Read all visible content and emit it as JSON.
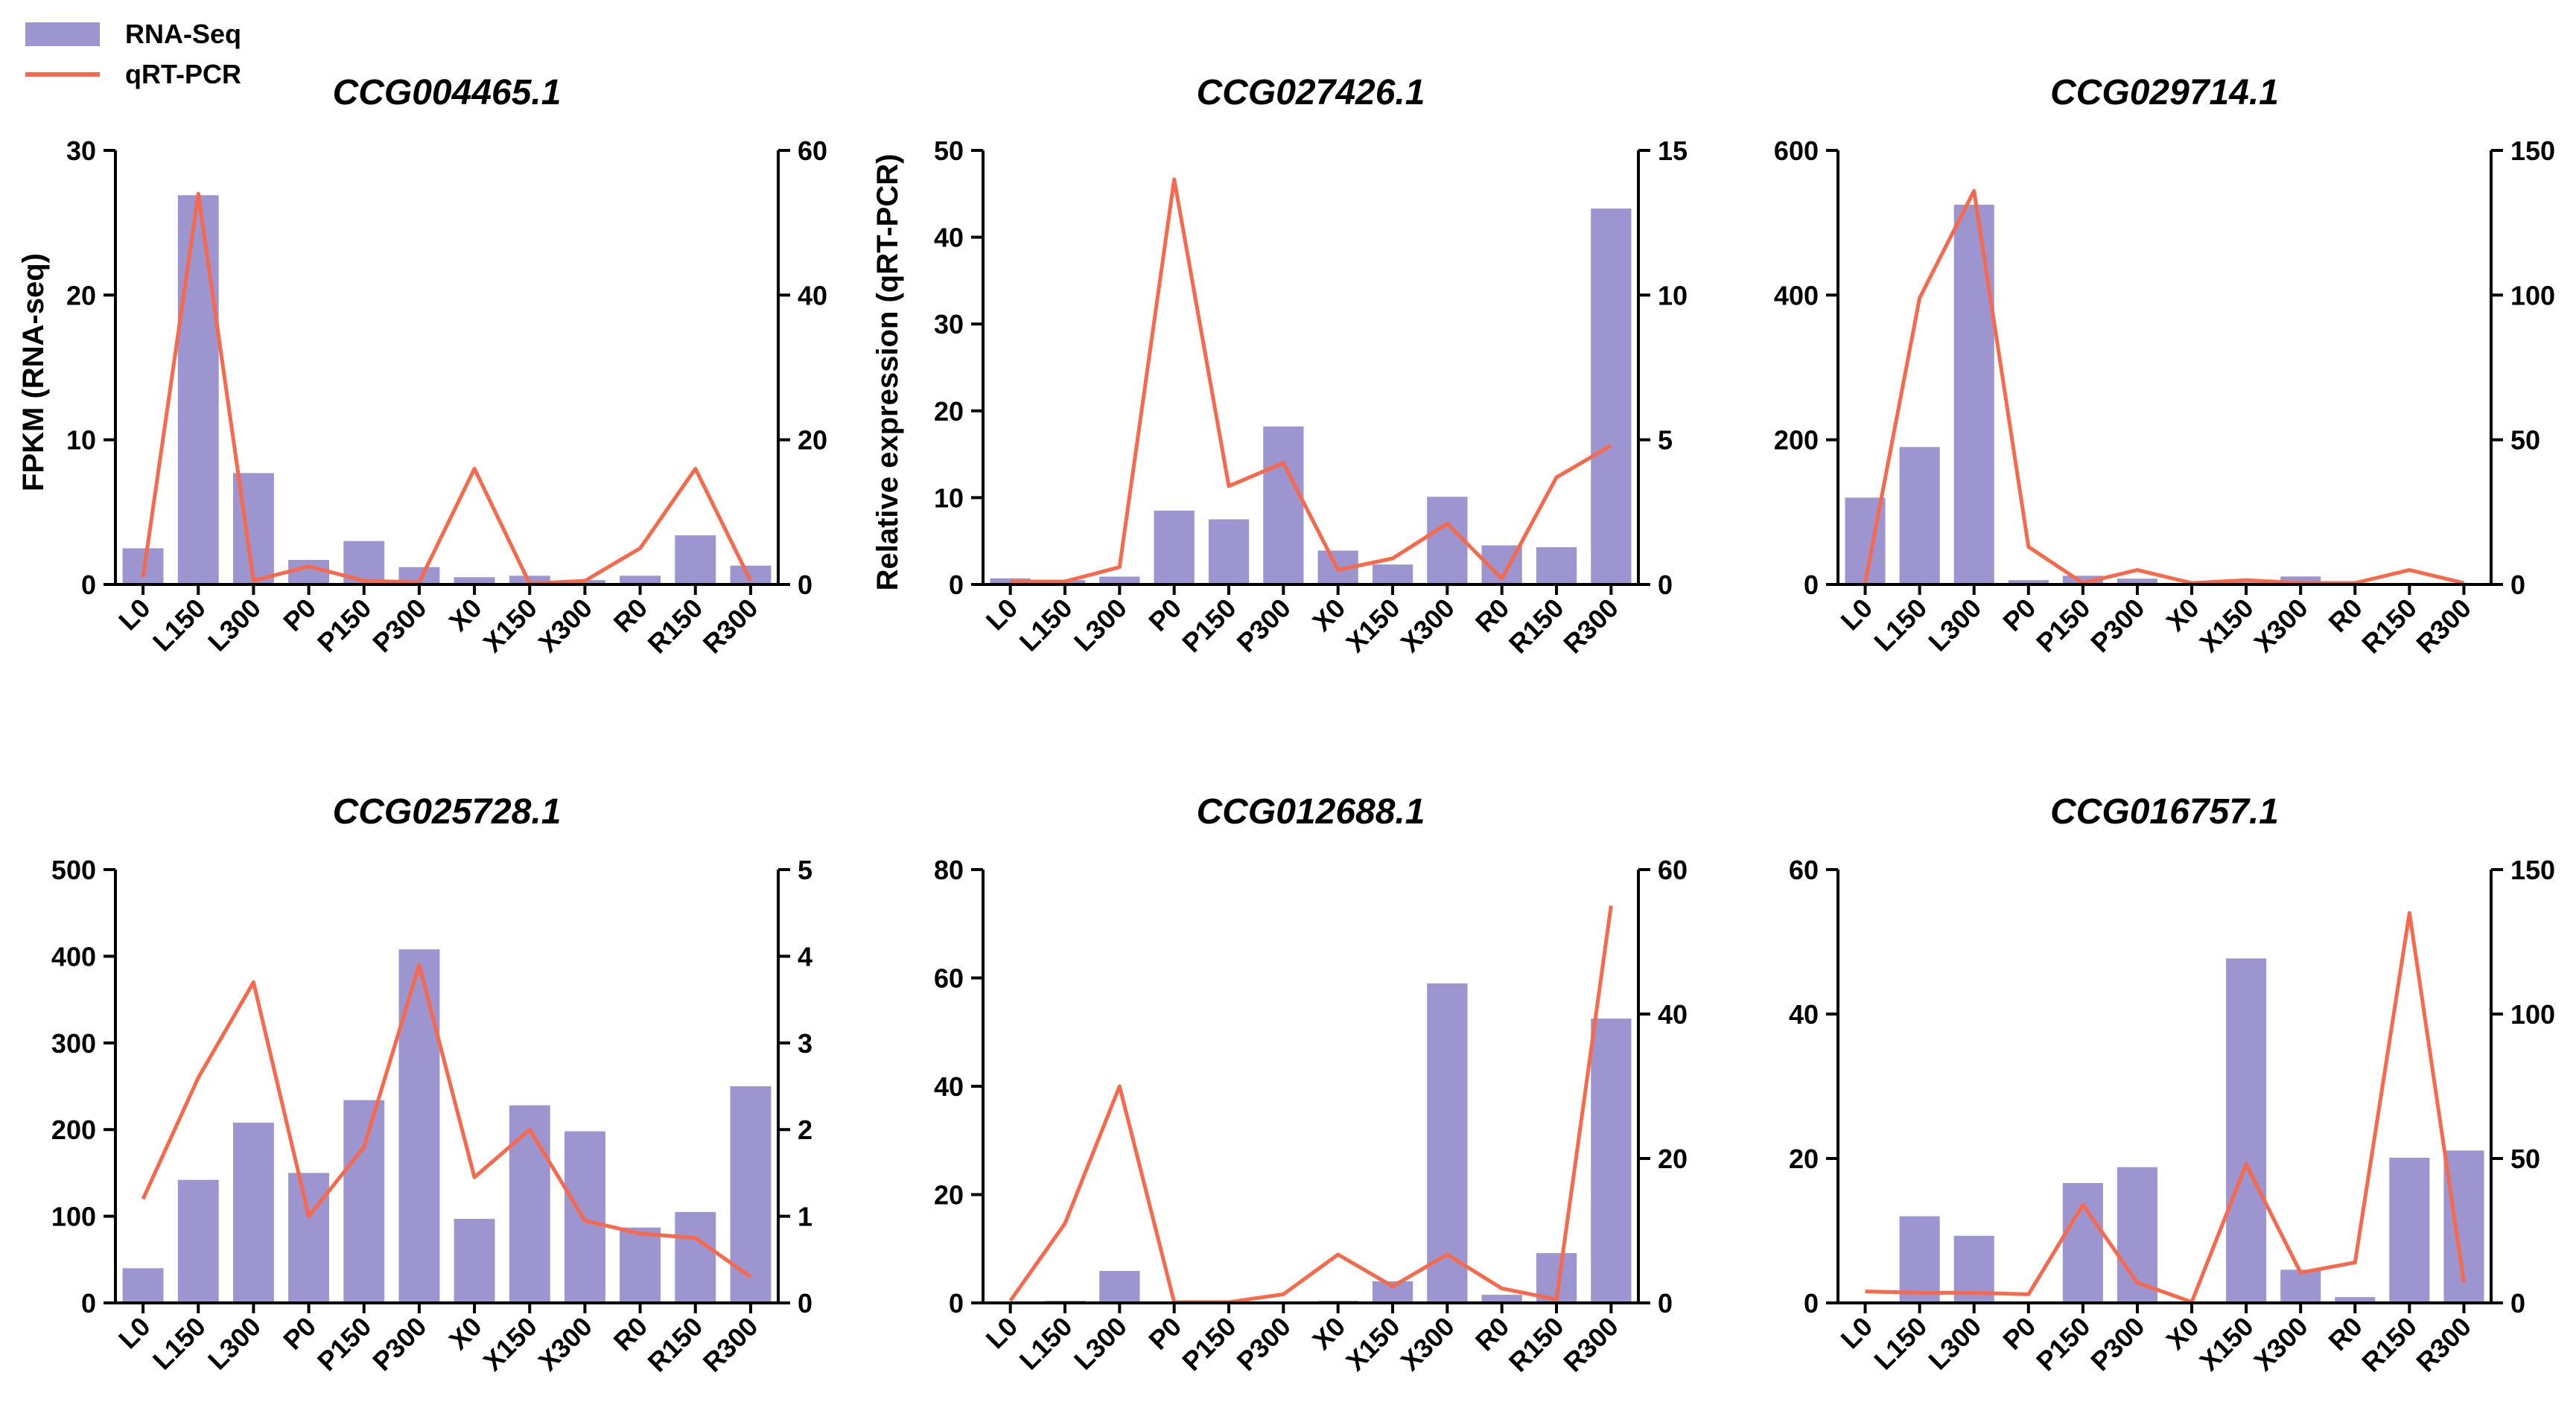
{
  "colors": {
    "bar": "#9C95CF",
    "line": "#F7694A",
    "axis": "#000000"
  },
  "legend": {
    "bar_label": "RNA-Seq",
    "line_label": "qRT-PCR"
  },
  "shared_ylabels": {
    "left_bar": "FPKM (RNA-seq)",
    "left_line": "Relative expression (qRT-PCR)"
  },
  "chart_data": [
    {
      "type": "bar+line",
      "title": "CCG004465.1",
      "categories": [
        "L0",
        "L150",
        "L300",
        "P0",
        "P150",
        "P300",
        "X0",
        "X150",
        "X300",
        "R0",
        "R150",
        "R300"
      ],
      "series": [
        {
          "name": "RNA-Seq",
          "axis": "left",
          "values": [
            2.5,
            26.9,
            7.7,
            1.7,
            3.0,
            1.2,
            0.5,
            0.6,
            0.3,
            0.6,
            3.4,
            1.3
          ]
        },
        {
          "name": "qRT-PCR",
          "axis": "right",
          "values": [
            1.0,
            54.0,
            0.5,
            2.5,
            0.5,
            0.3,
            16.0,
            0.1,
            0.5,
            5.0,
            16.0,
            0.5
          ]
        }
      ],
      "ylim_left": [
        0,
        30
      ],
      "yticks_left": [
        "0",
        "10",
        "20",
        "30"
      ],
      "ylim_right": [
        0,
        60
      ],
      "yticks_right": [
        "0",
        "20",
        "40",
        "60"
      ],
      "ylabel": "FPKM (RNA-seq)"
    },
    {
      "type": "bar+line",
      "title": "CCG027426.1",
      "categories": [
        "L0",
        "L150",
        "L300",
        "P0",
        "P150",
        "P300",
        "X0",
        "X150",
        "X300",
        "R0",
        "R150",
        "R300"
      ],
      "series": [
        {
          "name": "RNA-Seq",
          "axis": "left",
          "values": [
            0.7,
            0.5,
            0.9,
            8.5,
            7.5,
            18.2,
            3.9,
            2.3,
            10.1,
            4.5,
            4.3,
            43.3
          ]
        },
        {
          "name": "qRT-PCR",
          "axis": "right",
          "values": [
            0.1,
            0.1,
            0.6,
            14.0,
            3.4,
            4.2,
            0.5,
            0.9,
            2.1,
            0.2,
            3.7,
            4.8
          ]
        }
      ],
      "ylim_left": [
        0,
        50
      ],
      "yticks_left": [
        "0",
        "10",
        "20",
        "30",
        "40",
        "50"
      ],
      "ylim_right": [
        0,
        15
      ],
      "yticks_right": [
        "0",
        "5",
        "10",
        "15"
      ],
      "ylabel": "Relative expression (qRT-PCR)"
    },
    {
      "type": "bar+line",
      "title": "CCG029714.1",
      "categories": [
        "L0",
        "L150",
        "L300",
        "P0",
        "P150",
        "P300",
        "X0",
        "X150",
        "X300",
        "R0",
        "R150",
        "R300"
      ],
      "series": [
        {
          "name": "RNA-Seq",
          "axis": "left",
          "values": [
            120,
            190,
            525,
            6,
            12,
            8,
            2,
            3,
            11,
            2,
            2,
            2
          ]
        },
        {
          "name": "qRT-PCR",
          "axis": "right",
          "values": [
            0.5,
            99,
            136,
            13,
            0.5,
            5,
            0.5,
            1.5,
            0.5,
            0.5,
            5,
            0.5
          ]
        }
      ],
      "ylim_left": [
        0,
        600
      ],
      "yticks_left": [
        "0",
        "200",
        "400",
        "600"
      ],
      "ylim_right": [
        0,
        150
      ],
      "yticks_right": [
        "0",
        "50",
        "100",
        "150"
      ],
      "ylabel": ""
    },
    {
      "type": "bar+line",
      "title": "CCG025728.1",
      "categories": [
        "L0",
        "L150",
        "L300",
        "P0",
        "P150",
        "P300",
        "X0",
        "X150",
        "X300",
        "R0",
        "R150",
        "R300"
      ],
      "series": [
        {
          "name": "RNA-Seq",
          "axis": "left",
          "values": [
            40,
            142,
            208,
            150,
            234,
            408,
            97,
            228,
            198,
            87,
            105,
            250
          ]
        },
        {
          "name": "qRT-PCR",
          "axis": "right",
          "values": [
            1.2,
            2.6,
            3.7,
            1.0,
            1.8,
            3.9,
            1.45,
            2.0,
            0.95,
            0.8,
            0.75,
            0.3
          ]
        }
      ],
      "ylim_left": [
        0,
        500
      ],
      "yticks_left": [
        "0",
        "100",
        "200",
        "300",
        "400",
        "500"
      ],
      "ylim_right": [
        0,
        5
      ],
      "yticks_right": [
        "0",
        "1",
        "2",
        "3",
        "4",
        "5"
      ],
      "ylabel": ""
    },
    {
      "type": "bar+line",
      "title": "CCG012688.1",
      "categories": [
        "L0",
        "L150",
        "L300",
        "P0",
        "P150",
        "P300",
        "X0",
        "X150",
        "X300",
        "R0",
        "R150",
        "R300"
      ],
      "series": [
        {
          "name": "RNA-Seq",
          "axis": "left",
          "values": [
            0.2,
            0.4,
            5.9,
            0.2,
            0.3,
            0.2,
            0.4,
            4.0,
            59.0,
            1.5,
            9.2,
            52.5
          ]
        },
        {
          "name": "qRT-PCR",
          "axis": "right",
          "values": [
            0.3,
            11.0,
            30.0,
            0.1,
            0.1,
            1.2,
            6.7,
            2.3,
            6.7,
            2.0,
            0.5,
            55.0
          ]
        }
      ],
      "ylim_left": [
        0,
        80
      ],
      "yticks_left": [
        "0",
        "20",
        "40",
        "60",
        "80"
      ],
      "ylim_right": [
        0,
        60
      ],
      "yticks_right": [
        "0",
        "20",
        "40",
        "60"
      ],
      "ylabel": ""
    },
    {
      "type": "bar+line",
      "title": "CCG016757.1",
      "categories": [
        "L0",
        "L150",
        "L300",
        "P0",
        "P150",
        "P300",
        "X0",
        "X150",
        "X300",
        "R0",
        "R150",
        "R300"
      ],
      "series": [
        {
          "name": "RNA-Seq",
          "axis": "left",
          "values": [
            0.2,
            12.0,
            9.3,
            0.2,
            16.6,
            18.8,
            0.2,
            47.7,
            4.6,
            0.8,
            20.1,
            21.1
          ]
        },
        {
          "name": "qRT-PCR",
          "axis": "right",
          "values": [
            4.0,
            3.5,
            3.5,
            3.0,
            34.0,
            7.0,
            0.3,
            48.0,
            10.5,
            14.0,
            135.0,
            7.0
          ]
        }
      ],
      "ylim_left": [
        0,
        60
      ],
      "yticks_left": [
        "0",
        "20",
        "40",
        "60"
      ],
      "ylim_right": [
        0,
        150
      ],
      "yticks_right": [
        "0",
        "50",
        "100",
        "150"
      ],
      "ylabel": ""
    }
  ]
}
